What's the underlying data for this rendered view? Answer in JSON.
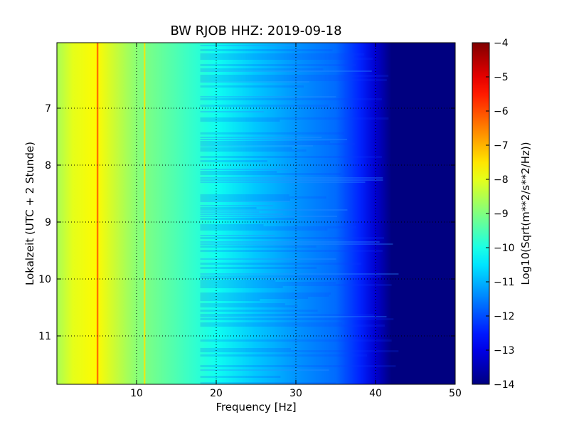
{
  "chart_data": {
    "type": "heatmap",
    "title": "BW RJOB HHZ: 2019-09-18",
    "xlabel": "Frequency [Hz]",
    "ylabel": "Lokalzeit (UTC + 2 Stunde)",
    "colorbar_label": "Log10(Sqrt(m**2/s**2/Hz))",
    "xlim": [
      0,
      50
    ],
    "ylim": [
      5.85,
      11.85
    ],
    "y_inverted": true,
    "x_ticks": [
      10,
      20,
      30,
      40,
      50
    ],
    "y_ticks": [
      7,
      8,
      9,
      10,
      11
    ],
    "color_range": [
      -14,
      -4
    ],
    "colorbar_ticks": [
      -4,
      -5,
      -6,
      -7,
      -8,
      -9,
      -10,
      -11,
      -12,
      -13,
      -14
    ],
    "colormap": "jet",
    "grid": "dotted",
    "spectral_profile": {
      "frequency_hz": [
        0,
        2,
        5,
        10,
        15,
        20,
        25,
        30,
        35,
        38,
        40,
        42,
        50
      ],
      "value": [
        -8.6,
        -8.0,
        -7.7,
        -8.9,
        -9.5,
        -10.1,
        -10.8,
        -11.3,
        -11.7,
        -12.4,
        -13.2,
        -14,
        -14
      ]
    },
    "spectral_lines": [
      {
        "frequency_hz": 5.1,
        "value": -6.0
      },
      {
        "frequency_hz": 11.0,
        "value": -7.5
      }
    ],
    "colors": {
      "grid": "#000000",
      "background": "#ffffff"
    }
  }
}
